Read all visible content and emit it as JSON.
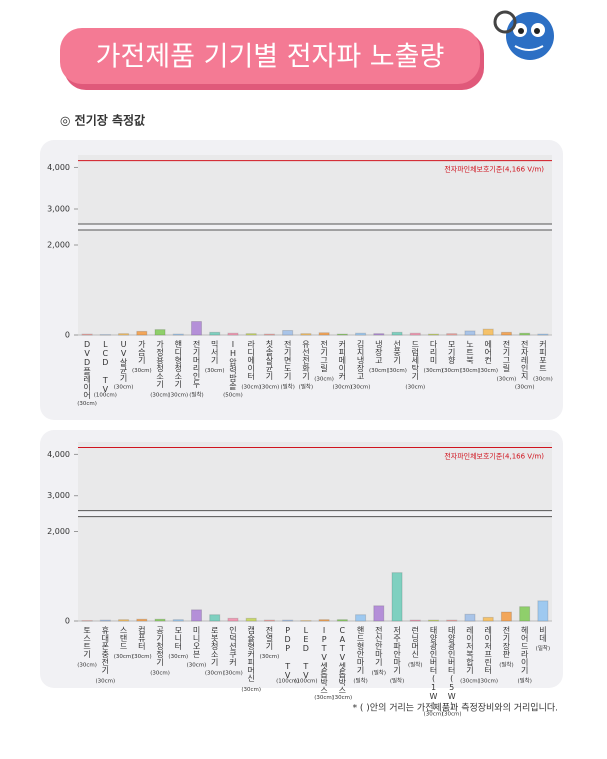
{
  "header": {
    "title": "가전제품 기기별 전자파 노출량",
    "subtitle": "◎ 전기장 측정값"
  },
  "footnote": "* ( )안의 거리는 가전제품과 측정장비와의 거리입니다.",
  "chart_data": [
    {
      "type": "bar",
      "categories": [
        "DVD플레이어",
        "LCD TV",
        "UV살균기",
        "가습기",
        "가정용청소기",
        "핸디형청소기",
        "전기머리인두",
        "믹서기",
        "IH압력밥솥",
        "라디에이터",
        "칫솔살균기",
        "전기면도기",
        "유선전화기",
        "전기그릴",
        "커피메이커",
        "김치냉장고",
        "냉장고",
        "선풍기",
        "드럼세탁기",
        "다리미",
        "모기향",
        "노트북",
        "에어컨",
        "전기그릴",
        "전자레인지",
        "커피포트"
      ],
      "distances": [
        "(30cm)",
        "(100cm)",
        "(30cm)",
        "(30cm)",
        "(30cm)",
        "(30cm)",
        "(밀착)",
        "(30cm)",
        "(50cm)",
        "(30cm)",
        "(30cm)",
        "(밀착)",
        "(밀착)",
        "(30cm)",
        "(30cm)",
        "(30cm)",
        "(30cm)",
        "(30cm)",
        "(30cm)",
        "(30cm)",
        "(30cm)",
        "(30cm)",
        "(30cm)",
        "(30cm)",
        "(30cm)",
        "(30cm)"
      ],
      "values": [
        20,
        10,
        30,
        80,
        120,
        20,
        300,
        60,
        40,
        30,
        20,
        100,
        30,
        50,
        20,
        40,
        30,
        60,
        40,
        20,
        30,
        90,
        130,
        60,
        40,
        20
      ],
      "palette": [
        "#f4a7a3",
        "#a9c4e8",
        "#f5c26b",
        "#f2a65a",
        "#8fcf6b",
        "#9ec9f0",
        "#b48fd8",
        "#7fd0c0",
        "#f29bb5",
        "#c9d86a"
      ],
      "ylim": [
        0,
        4300
      ],
      "axis_break": [
        2000,
        3000
      ],
      "yticks": [
        0,
        {
          "value": 2000,
          "label": "2,000"
        },
        {
          "value": 3000,
          "label": "3,000"
        },
        {
          "value": 4000,
          "label": "4,000"
        }
      ],
      "reference": {
        "value": 4166,
        "label": "전자파인체보호기준(4,166 V/m)",
        "color": "#d0141e"
      }
    },
    {
      "type": "bar",
      "categories": [
        "토스트기",
        "휴대폰충전기",
        "스탠드",
        "컴퓨터",
        "공기청정기",
        "모니터",
        "미니오븐",
        "로봇청소기",
        "인덕션쿠커",
        "캡슐형커피머신",
        "전열기",
        "PDP TV",
        "LED TV",
        "IPTV셋톱박스",
        "CATV셋톱박스",
        "핸드형안마기",
        "전신안마기",
        "저주파안마기",
        "런닝머신",
        "태양광인버터(1W)",
        "태양광인버터(5W)",
        "레이저복합기",
        "레이저프린터",
        "전기장판",
        "헤어드라이기",
        "비데"
      ],
      "distances": [
        "(30cm)",
        "(30cm)",
        "(30cm)",
        "(30cm)",
        "(30cm)",
        "(30cm)",
        "(30cm)",
        "(30cm)",
        "(30cm)",
        "(30cm)",
        "(30cm)",
        "(100cm)",
        "(100cm)",
        "(30cm)",
        "(30cm)",
        "(밀착)",
        "(밀착)",
        "(밀착)",
        "(밀착)",
        "(30cm)",
        "(30cm)",
        "(30cm)",
        "(30cm)",
        "(밀착)",
        "(밀착)",
        "(밀착)"
      ],
      "values": [
        10,
        20,
        30,
        40,
        40,
        30,
        250,
        140,
        60,
        60,
        20,
        20,
        10,
        30,
        30,
        140,
        340,
        1080,
        20,
        20,
        20,
        150,
        80,
        200,
        320,
        450
      ],
      "palette": [
        "#f4a7a3",
        "#a9c4e8",
        "#f5c26b",
        "#f2a65a",
        "#8fcf6b",
        "#9ec9f0",
        "#b48fd8",
        "#7fd0c0",
        "#f29bb5",
        "#c9d86a"
      ],
      "ylim": [
        0,
        4300
      ],
      "axis_break": [
        2000,
        3000
      ],
      "yticks": [
        0,
        {
          "value": 2000,
          "label": "2,000"
        },
        {
          "value": 3000,
          "label": "3,000"
        },
        {
          "value": 4000,
          "label": "4,000"
        }
      ],
      "reference": {
        "value": 4166,
        "label": "전자파인체보호기준(4,166 V/m)",
        "color": "#d0141e"
      }
    }
  ]
}
